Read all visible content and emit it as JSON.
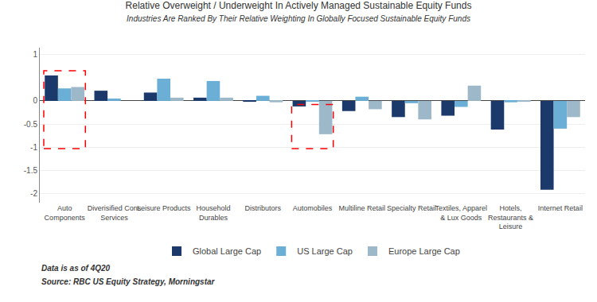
{
  "chart_data": {
    "type": "bar",
    "title": "Relative Overweight / Underweight In Actively Managed Sustainable Equity Funds",
    "subtitle": "Industries Are Ranked By Their Relative Weighting In Globally Focused Sustainable Equity Funds",
    "categories": [
      "Auto\nComponents",
      "Diverisified Cons\nServices",
      "Leisure Products",
      "Household\nDurables",
      "Distributors",
      "Automobiles",
      "Multiline Retail",
      "Specialty Retail",
      "Textiles, Apparel\n& Lux Goods",
      "Hotels,\nRestaurants &\nLeisure",
      "Internet Retail"
    ],
    "series": [
      {
        "name": "Global Large Cap",
        "color": "#1b3a6b",
        "values": [
          0.55,
          0.22,
          0.18,
          0.07,
          -0.02,
          -0.12,
          -0.22,
          -0.35,
          -0.32,
          -0.62,
          -1.92
        ]
      },
      {
        "name": "US Large Cap",
        "color": "#6baed6",
        "values": [
          0.27,
          0.05,
          0.48,
          0.43,
          0.11,
          -0.02,
          0.09,
          -0.05,
          -0.13,
          -0.03,
          -0.6
        ]
      },
      {
        "name": "Europe Large Cap",
        "color": "#9db8c8",
        "values": [
          0.3,
          0.0,
          0.07,
          0.07,
          -0.03,
          -0.72,
          -0.18,
          -0.4,
          0.33,
          -0.02,
          -0.35
        ]
      }
    ],
    "ylim": [
      -2.2,
      1.15
    ],
    "yticks": [
      1,
      0,
      -0.5,
      -1,
      -1.5,
      -2
    ],
    "grid": true,
    "legend": "bottom",
    "highlights": [
      {
        "category": "Auto\nComponents",
        "ylim": [
          -1.03,
          0.65
        ],
        "color": "red",
        "line_style": "dashed"
      },
      {
        "category": "Automobiles",
        "ylim": [
          -1.03,
          -0.08
        ],
        "color": "red",
        "line_style": "dashed"
      }
    ],
    "annotations": [
      "Data is as of 4Q20",
      "Source: RBC US Equity Strategy, Morningstar"
    ]
  }
}
